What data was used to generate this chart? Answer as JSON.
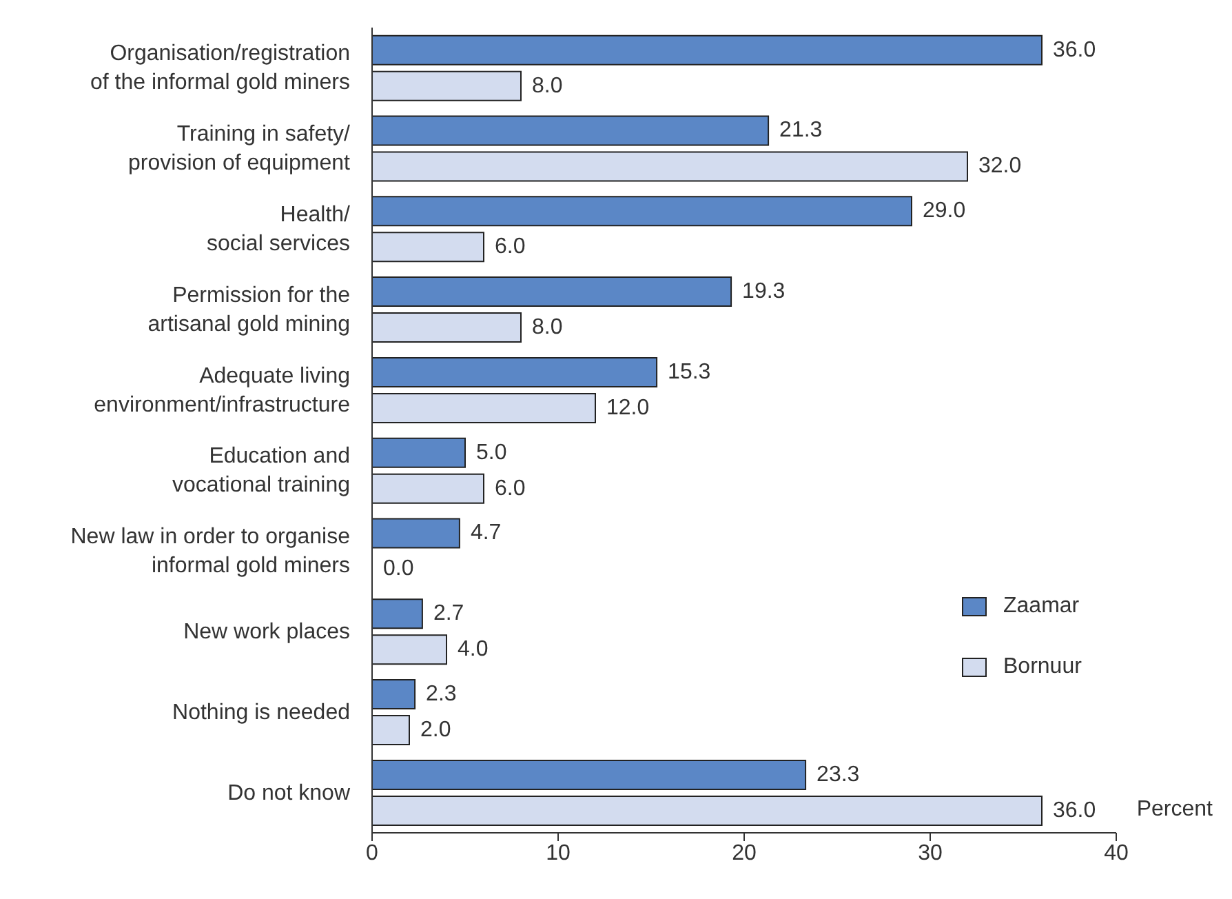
{
  "chart_data": {
    "type": "bar",
    "orientation": "horizontal",
    "xlabel": "Percent",
    "categories": [
      "Organisation/registration\nof the informal gold miners",
      "Training in safety/\nprovision of equipment",
      "Health/\nsocial services",
      "Permission for the\nartisanal gold mining",
      "Adequate living\nenvironment/infrastructure",
      "Education and\nvocational training",
      "New law in order to organise\ninformal gold miners",
      "New work places",
      "Nothing is needed",
      "Do not know"
    ],
    "series": [
      {
        "name": "Zaamar",
        "color": "#5b87c6",
        "values": [
          36.0,
          21.3,
          29.0,
          19.3,
          15.3,
          5.0,
          4.7,
          2.7,
          2.3,
          23.3
        ],
        "value_labels": [
          "36.0",
          "21.3",
          "29.0",
          "19.3",
          "15.3",
          "5.0",
          "4.7",
          "2.7",
          "2.3",
          "23.3"
        ]
      },
      {
        "name": "Bornuur",
        "color": "#d3dcef",
        "values": [
          8.0,
          32.0,
          6.0,
          8.0,
          12.0,
          6.0,
          0.0,
          4.0,
          2.0,
          36.0
        ],
        "value_labels": [
          "8.0",
          "32.0",
          "6.0",
          "8.0",
          "12.0",
          "6.0",
          "0.0",
          "4.0",
          "2.0",
          "36.0"
        ]
      }
    ],
    "xlim": [
      0,
      40
    ],
    "xticks": [
      0,
      10,
      20,
      30,
      40
    ],
    "grid": false,
    "legend": "right"
  }
}
